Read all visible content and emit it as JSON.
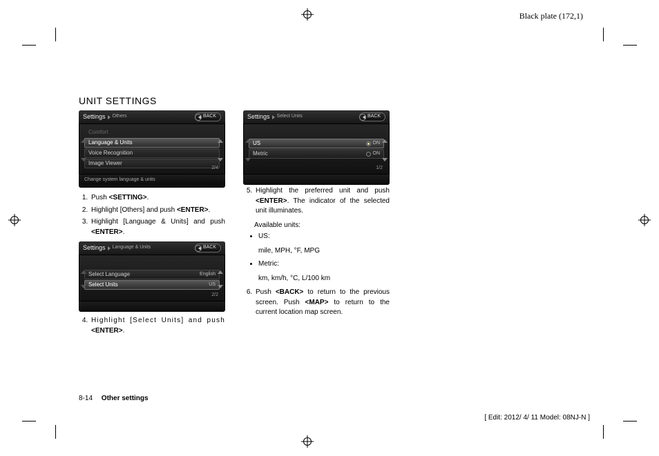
{
  "plate_label": "Black plate (172,1)",
  "heading": "UNIT SETTINGS",
  "shot1": {
    "title": "Settings",
    "crumb": "Others",
    "back": "BACK",
    "rows": {
      "comfort": "Comfort",
      "lang": "Language & Units",
      "voice": "Voice Recognition",
      "image": "Image Viewer"
    },
    "page": "2/4",
    "hint": "Change system language & units"
  },
  "steps_a": {
    "s1a": "Push ",
    "s1b": "<SETTING>",
    "s1c": ".",
    "s2a": "Highlight [Others] and push ",
    "s2b": "<ENTER>",
    "s2c": ".",
    "s3a": "Highlight [Language & Units] and push ",
    "s3b": "<ENTER>",
    "s3c": "."
  },
  "shot2": {
    "title": "Settings",
    "crumb": "Language & Units",
    "back": "BACK",
    "rows": {
      "lang": "Select Language",
      "lang_val": "English",
      "units": "Select Units",
      "units_val": "US"
    },
    "page": "2/2"
  },
  "steps_b": {
    "s4a": "Highlight [Select Units] and push ",
    "s4b": "<ENTER>",
    "s4c": "."
  },
  "shot3": {
    "title": "Settings",
    "crumb": "Select Units",
    "back": "BACK",
    "rows": {
      "us": "US",
      "us_on": "ON",
      "metric": "Metric",
      "metric_on": "ON"
    },
    "page": "1/2"
  },
  "steps_c": {
    "s5a": "Highlight the preferred unit and push ",
    "s5b": "<ENTER>",
    "s5c": ". The indicator of the selected unit illuminates.",
    "avail": "Available units:",
    "u1": "US:",
    "u1d": "mile, MPH, °F, MPG",
    "u2": "Metric:",
    "u2d": "km, km/h, °C, L/100 km",
    "s6a": "Push ",
    "s6b": "<BACK>",
    "s6c": " to return to the previous screen. Push ",
    "s6d": "<MAP>",
    "s6e": " to return to the current location map screen."
  },
  "footer": {
    "page": "8-14",
    "section": "Other settings"
  },
  "edit": "[ Edit: 2012/ 4/ 11   Model: 08NJ-N ]"
}
